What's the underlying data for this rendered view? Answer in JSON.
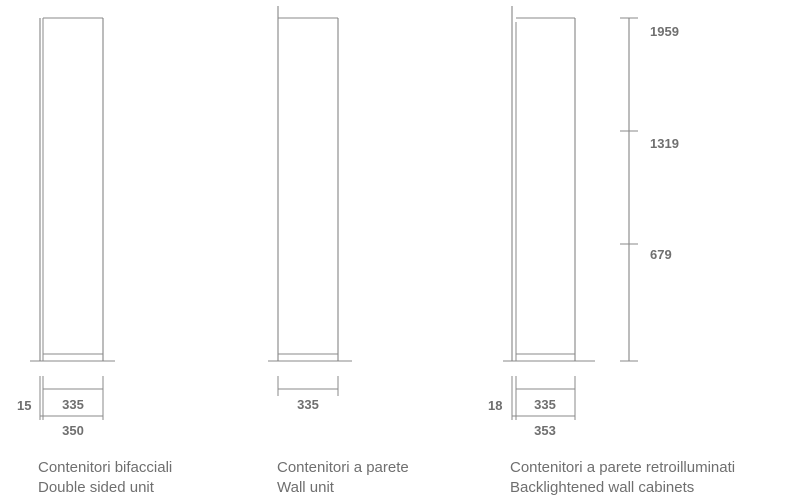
{
  "units": [
    {
      "dims": {
        "side": "15",
        "inner": "335",
        "outer": "350"
      },
      "caption_it": "Contenitori bifacciali",
      "caption_en": "Double sided unit"
    },
    {
      "dims": {
        "inner": "335"
      },
      "caption_it": "Contenitori a parete",
      "caption_en": "Wall unit"
    },
    {
      "dims": {
        "side": "18",
        "inner": "335",
        "outer": "353"
      },
      "caption_it": "Contenitori a parete retroilluminati",
      "caption_en": "Backlightened wall cabinets"
    }
  ],
  "heights": [
    "1959",
    "1319",
    "679"
  ]
}
